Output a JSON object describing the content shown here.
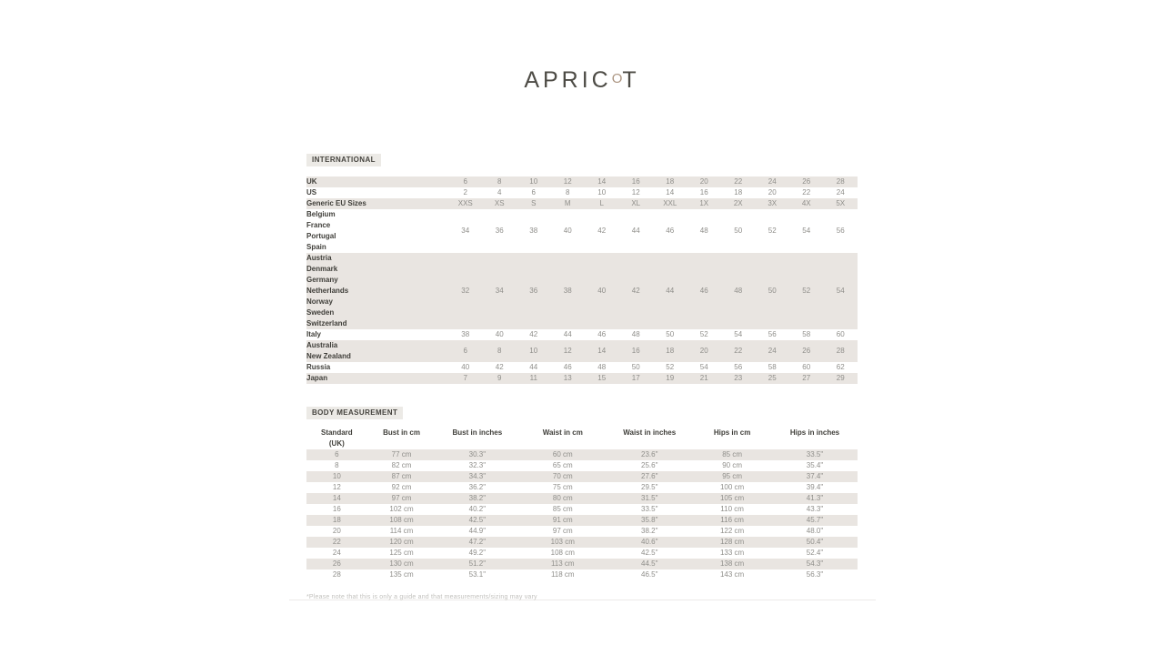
{
  "brand": {
    "logo_prefix": "APRIC",
    "logo_o": "O",
    "logo_suffix": "T"
  },
  "colors": {
    "logo_o_accent": "#ab9480",
    "row_shade": "#e9e5e1",
    "chip_background": "#eceae6",
    "label_text": "#3f3e39",
    "value_text": "#8f8e8a"
  },
  "international": {
    "title": "INTERNATIONAL",
    "rows": [
      {
        "label": "UK",
        "shaded": true,
        "values": [
          "6",
          "8",
          "10",
          "12",
          "14",
          "16",
          "18",
          "20",
          "22",
          "24",
          "26",
          "28"
        ]
      },
      {
        "label": "US",
        "shaded": false,
        "values": [
          "2",
          "4",
          "6",
          "8",
          "10",
          "12",
          "14",
          "16",
          "18",
          "20",
          "22",
          "24"
        ]
      },
      {
        "label": "Generic EU Sizes",
        "shaded": true,
        "values": [
          "XXS",
          "XS",
          "S",
          "M",
          "L",
          "XL",
          "XXL",
          "1X",
          "2X",
          "3X",
          "4X",
          "5X"
        ]
      },
      {
        "label": "Belgium\nFrance\nPortugal\nSpain",
        "shaded": false,
        "values": [
          "34",
          "36",
          "38",
          "40",
          "42",
          "44",
          "46",
          "48",
          "50",
          "52",
          "54",
          "56"
        ]
      },
      {
        "label": "Austria\nDenmark\nGermany\nNetherlands\nNorway\nSweden\nSwitzerland",
        "shaded": true,
        "values": [
          "32",
          "34",
          "36",
          "38",
          "40",
          "42",
          "44",
          "46",
          "48",
          "50",
          "52",
          "54"
        ]
      },
      {
        "label": "Italy",
        "shaded": false,
        "values": [
          "38",
          "40",
          "42",
          "44",
          "46",
          "48",
          "50",
          "52",
          "54",
          "56",
          "58",
          "60"
        ]
      },
      {
        "label": "Australia\nNew Zealand",
        "shaded": true,
        "values": [
          "6",
          "8",
          "10",
          "12",
          "14",
          "16",
          "18",
          "20",
          "22",
          "24",
          "26",
          "28"
        ]
      },
      {
        "label": "Russia",
        "shaded": false,
        "values": [
          "40",
          "42",
          "44",
          "46",
          "48",
          "50",
          "52",
          "54",
          "56",
          "58",
          "60",
          "62"
        ]
      },
      {
        "label": "Japan",
        "shaded": true,
        "values": [
          "7",
          "9",
          "11",
          "13",
          "15",
          "17",
          "19",
          "21",
          "23",
          "25",
          "27",
          "29"
        ]
      }
    ]
  },
  "body_measurement": {
    "title": "BODY MEASUREMENT",
    "headers": [
      "Standard\n(UK)",
      "Bust in cm",
      "Bust in inches",
      "Waist in cm",
      "Waist in inches",
      "Hips in cm",
      "Hips in inches"
    ],
    "rows": [
      [
        "6",
        "77 cm",
        "30.3\"",
        "60 cm",
        "23.6\"",
        "85 cm",
        "33.5\""
      ],
      [
        "8",
        "82 cm",
        "32.3\"",
        "65 cm",
        "25.6\"",
        "90 cm",
        "35.4\""
      ],
      [
        "10",
        "87 cm",
        "34.3\"",
        "70 cm",
        "27.6\"",
        "95 cm",
        "37.4\""
      ],
      [
        "12",
        "92 cm",
        "36.2\"",
        "75 cm",
        "29.5\"",
        "100 cm",
        "39.4\""
      ],
      [
        "14",
        "97 cm",
        "38.2\"",
        "80 cm",
        "31.5\"",
        "105 cm",
        "41.3\""
      ],
      [
        "16",
        "102 cm",
        "40.2\"",
        "85 cm",
        "33.5\"",
        "110 cm",
        "43.3\""
      ],
      [
        "18",
        "108 cm",
        "42.5\"",
        "91 cm",
        "35.8\"",
        "116 cm",
        "45.7\""
      ],
      [
        "20",
        "114 cm",
        "44.9\"",
        "97 cm",
        "38.2\"",
        "122 cm",
        "48.0\""
      ],
      [
        "22",
        "120 cm",
        "47.2\"",
        "103 cm",
        "40.6\"",
        "128 cm",
        "50.4\""
      ],
      [
        "24",
        "125 cm",
        "49.2\"",
        "108 cm",
        "42.5\"",
        "133 cm",
        "52.4\""
      ],
      [
        "26",
        "130 cm",
        "51.2\"",
        "113 cm",
        "44.5\"",
        "138 cm",
        "54.3\""
      ],
      [
        "28",
        "135 cm",
        "53.1\"",
        "118 cm",
        "46.5\"",
        "143 cm",
        "56.3\""
      ]
    ]
  },
  "footnote": "*Please note that this is only a guide and that measurements/sizing may vary"
}
